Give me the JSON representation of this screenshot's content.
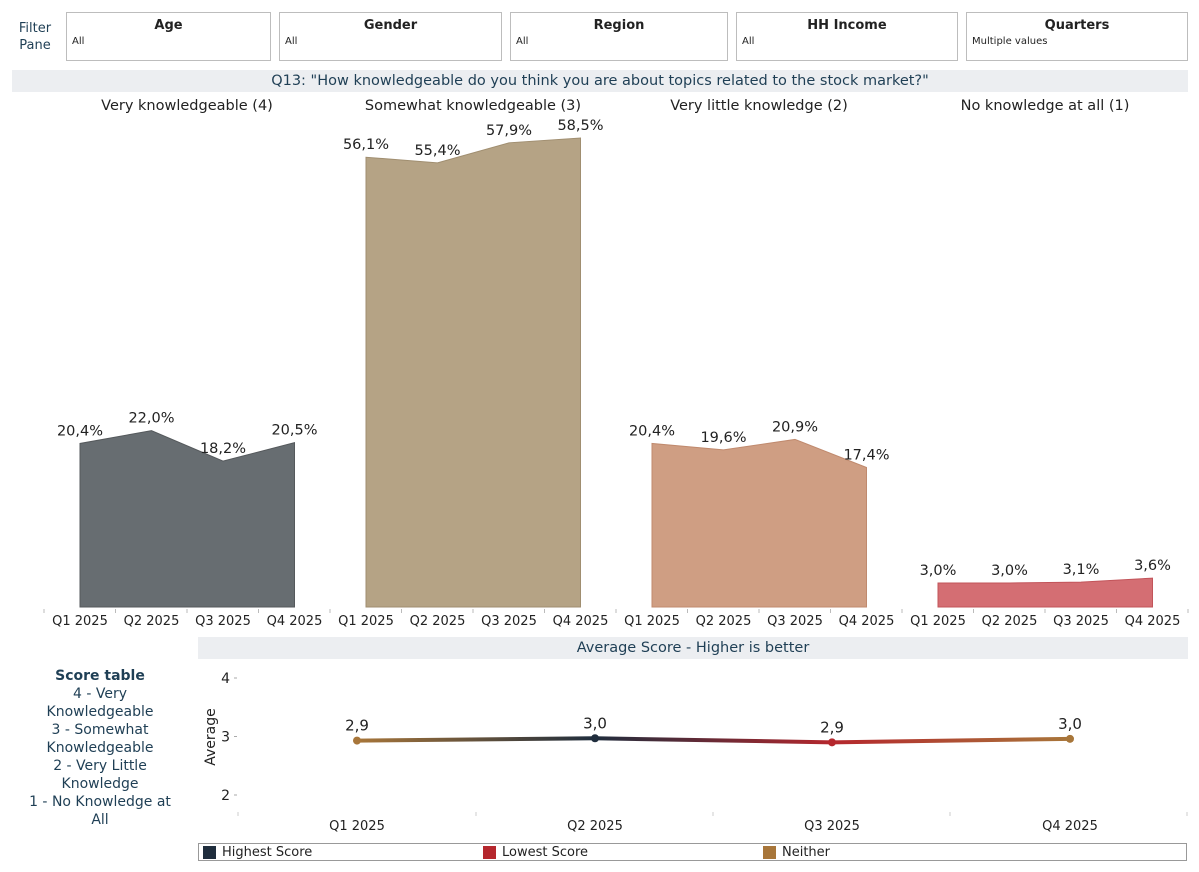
{
  "filter_pane": {
    "label_line1": "Filter",
    "label_line2": "Pane"
  },
  "filters": [
    {
      "title": "Age",
      "value": "All"
    },
    {
      "title": "Gender",
      "value": "All"
    },
    {
      "title": "Region",
      "value": "All"
    },
    {
      "title": "HH Income",
      "value": "All"
    },
    {
      "title": "Quarters",
      "value": "Multiple values"
    }
  ],
  "q13_title": "Q13: \"How knowledgeable do you think you are about topics related to the stock market?\"",
  "avg_title": "Average Score - Higher is better",
  "score_table": {
    "title": "Score table",
    "lines": [
      "4 - Very",
      "Knowledgeable",
      "3 - Somewhat",
      "Knowledgeable",
      "2 - Very Little",
      "Knowledge",
      "1 - No Knowledge at",
      "All"
    ]
  },
  "legend": [
    {
      "label": "Highest Score",
      "color": "#1f2d3d"
    },
    {
      "label": "Lowest Score",
      "color": "#b5272d"
    },
    {
      "label": "Neither",
      "color": "#a8763a"
    }
  ],
  "chart_data": [
    {
      "type": "area",
      "categories": [
        "Q1 2025",
        "Q2 2025",
        "Q3 2025",
        "Q4 2025"
      ],
      "panels": [
        {
          "name": "Very knowledgeable (4)",
          "color": "#676d71",
          "stroke": "#55595c",
          "values": [
            20.4,
            22.0,
            18.2,
            20.5
          ],
          "labels": [
            "20,4%",
            "22,0%",
            "18,2%",
            "20,5%"
          ]
        },
        {
          "name": "Somewhat knowledgeable (3)",
          "color": "#b5a385",
          "stroke": "#a08e70",
          "values": [
            56.1,
            55.4,
            57.9,
            58.5
          ],
          "labels": [
            "56,1%",
            "55,4%",
            "57,9%",
            "58,5%"
          ]
        },
        {
          "name": "Very little knowledge (2)",
          "color": "#cf9e83",
          "stroke": "#c08a6e",
          "values": [
            20.4,
            19.6,
            20.9,
            17.4
          ],
          "labels": [
            "20,4%",
            "19,6%",
            "20,9%",
            "17,4%"
          ]
        },
        {
          "name": "No knowledge at all (1)",
          "color": "#d46e73",
          "stroke": "#c2545a",
          "values": [
            3.0,
            3.0,
            3.1,
            3.6
          ],
          "labels": [
            "3,0%",
            "3,0%",
            "3,1%",
            "3,6%"
          ]
        }
      ],
      "ylim": [
        0,
        60
      ]
    },
    {
      "type": "line",
      "title": "Average Score - Higher is better",
      "categories": [
        "Q1 2025",
        "Q2 2025",
        "Q3 2025",
        "Q4 2025"
      ],
      "values": [
        2.93,
        2.97,
        2.9,
        2.96
      ],
      "labels": [
        "2,9",
        "3,0",
        "2,9",
        "3,0"
      ],
      "point_colors": [
        "#a8763a",
        "#1f2d3d",
        "#b5272d",
        "#a8763a"
      ],
      "ylabel": "Average",
      "yticks": [
        2,
        3,
        4
      ],
      "ylim": [
        1.7,
        4.1
      ]
    }
  ]
}
